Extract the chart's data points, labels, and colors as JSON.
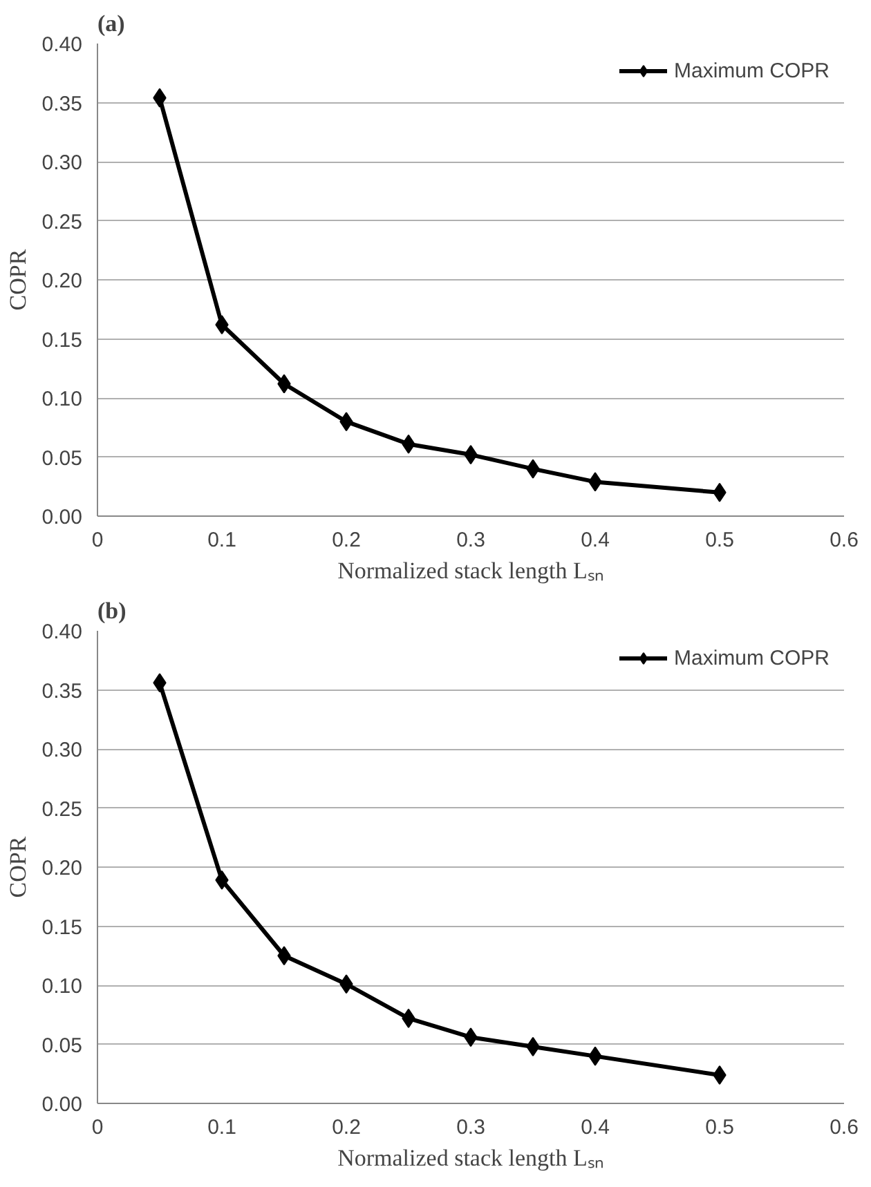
{
  "chart_data": [
    {
      "type": "line",
      "title": "(a)",
      "xlabel": "Normalized stack length Lₛₙ",
      "ylabel": "COPR",
      "x": [
        0.05,
        0.1,
        0.15,
        0.2,
        0.25,
        0.3,
        0.35,
        0.4,
        0.5
      ],
      "series": [
        {
          "name": "Maximum COPR",
          "color": "#000000",
          "values": [
            0.354,
            0.162,
            0.112,
            0.08,
            0.061,
            0.052,
            0.04,
            0.029,
            0.02
          ]
        }
      ],
      "xlim": [
        0,
        0.6
      ],
      "xticks": [
        0,
        0.1,
        0.2,
        0.3,
        0.4,
        0.5,
        0.6
      ],
      "ylim": [
        0,
        0.4
      ],
      "yticks": [
        {
          "value": 0,
          "label": "0.00"
        },
        {
          "value": 0.05,
          "label": "0.05"
        },
        {
          "value": 0.1,
          "label": "0.10"
        },
        {
          "value": 0.15,
          "label": "0.15"
        },
        {
          "value": 0.2,
          "label": "0.20"
        },
        {
          "value": 0.25,
          "label": "0.25"
        },
        {
          "value": 0.3,
          "label": "0.30"
        },
        {
          "value": 0.35,
          "label": "0.35"
        },
        {
          "value": 0.4,
          "label": "0.40"
        }
      ],
      "grid": "y",
      "legend": "top right",
      "marker": "diamond",
      "line_style": "solid"
    },
    {
      "type": "line",
      "title": "(b)",
      "xlabel": "Normalized stack length Lₛₙ",
      "ylabel": "COPR",
      "x": [
        0.05,
        0.1,
        0.15,
        0.2,
        0.25,
        0.3,
        0.35,
        0.4,
        0.5
      ],
      "series": [
        {
          "name": "Maximum COPR",
          "color": "#000000",
          "values": [
            0.356,
            0.189,
            0.125,
            0.101,
            0.072,
            0.056,
            0.048,
            0.04,
            0.024
          ]
        }
      ],
      "xlim": [
        0,
        0.6
      ],
      "xticks": [
        0,
        0.1,
        0.2,
        0.3,
        0.4,
        0.5,
        0.6
      ],
      "ylim": [
        0,
        0.4
      ],
      "yticks": [
        {
          "value": 0,
          "label": "0.00"
        },
        {
          "value": 0.05,
          "label": "0.05"
        },
        {
          "value": 0.1,
          "label": "0.10"
        },
        {
          "value": 0.15,
          "label": "0.15"
        },
        {
          "value": 0.2,
          "label": "0.20"
        },
        {
          "value": 0.25,
          "label": "0.25"
        },
        {
          "value": 0.3,
          "label": "0.30"
        },
        {
          "value": 0.35,
          "label": "0.35"
        },
        {
          "value": 0.4,
          "label": "0.40"
        }
      ],
      "grid": "y",
      "legend": "top right",
      "marker": "diamond",
      "line_style": "solid"
    }
  ]
}
